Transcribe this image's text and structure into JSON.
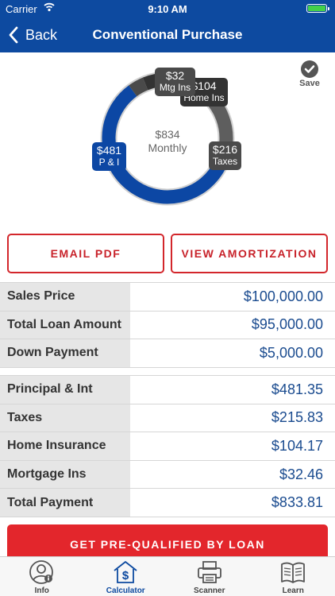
{
  "status_bar": {
    "carrier": "Carrier",
    "time": "9:10 AM"
  },
  "nav": {
    "back_label": "Back",
    "title": "Conventional Purchase"
  },
  "chart_data": {
    "type": "pie",
    "center": {
      "amount": "$834",
      "label": "Monthly"
    },
    "slices": [
      {
        "amount": "$481",
        "label": "P & I",
        "value": 481.35,
        "color": "#0c47a4"
      },
      {
        "amount": "$216",
        "label": "Taxes",
        "value": 215.83,
        "color": "#5e5e5e"
      },
      {
        "amount": "$104",
        "label": "Home Ins",
        "value": 104.17,
        "color": "#333333"
      },
      {
        "amount": "$32",
        "label": "Mtg Ins",
        "value": 32.46,
        "color": "#4a4a4a"
      }
    ]
  },
  "save_label": "Save",
  "actions": {
    "email_pdf": "EMAIL PDF",
    "view_amortization": "VIEW AMORTIZATION",
    "prequalify": "GET PRE-QUALIFIED BY LOAN"
  },
  "loan_table": [
    {
      "label": "Sales Price",
      "value": "$100,000.00"
    },
    {
      "label": "Total Loan Amount",
      "value": "$95,000.00"
    },
    {
      "label": "Down Payment",
      "value": "$5,000.00"
    }
  ],
  "payment_table": [
    {
      "label": "Principal & Int",
      "value": "$481.35"
    },
    {
      "label": "Taxes",
      "value": "$215.83"
    },
    {
      "label": "Home Insurance",
      "value": "$104.17"
    },
    {
      "label": "Mortgage Ins",
      "value": "$32.46"
    },
    {
      "label": "Total Payment",
      "value": "$833.81"
    }
  ],
  "tabs": [
    {
      "label": "Info",
      "icon": "info-person-icon"
    },
    {
      "label": "Calculator",
      "icon": "calculator-house-icon"
    },
    {
      "label": "Scanner",
      "icon": "scanner-icon"
    },
    {
      "label": "Learn",
      "icon": "book-icon"
    }
  ],
  "colors": {
    "brand_blue": "#0d4aa0",
    "accent_red": "#e3262c",
    "value_blue": "#1a4b8f"
  }
}
